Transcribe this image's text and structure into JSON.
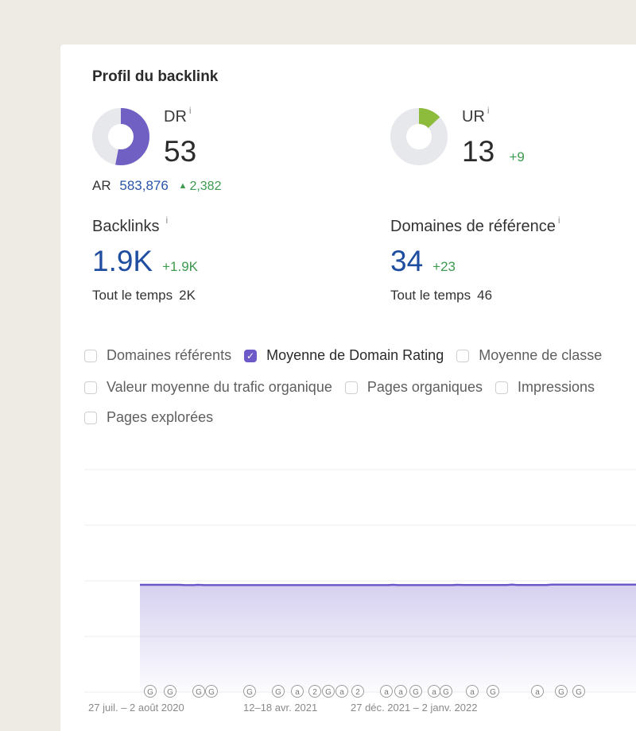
{
  "card": {
    "title": "Profil du backlink"
  },
  "dr": {
    "label": "DR",
    "info": "i",
    "value": "53",
    "fraction": 0.53,
    "color": "#7160c4"
  },
  "ur": {
    "label": "UR",
    "info": "i",
    "value": "13",
    "delta": "+9",
    "fraction": 0.13,
    "color": "#8dbb3c"
  },
  "ar": {
    "label": "AR",
    "value": "583,876",
    "delta_arrow": "▲",
    "delta": "2,382"
  },
  "backlinks": {
    "label": "Backlinks",
    "info": "i",
    "value": "1.9K",
    "delta": "+1.9K",
    "alltime_label": "Tout le temps",
    "alltime_value": "2K"
  },
  "refdomains": {
    "label": "Domaines de référence",
    "info": "i",
    "value": "34",
    "delta": "+23",
    "alltime_label": "Tout le temps",
    "alltime_value": "46"
  },
  "checkboxes": [
    {
      "label": "Domaines référents",
      "checked": false
    },
    {
      "label": "Moyenne de Domain Rating",
      "checked": true
    },
    {
      "label": "Moyenne de classe",
      "checked": false
    },
    {
      "label": "Valeur moyenne du trafic organique",
      "checked": false
    },
    {
      "label": "Pages organiques",
      "checked": false
    },
    {
      "label": "Impressions",
      "checked": false
    },
    {
      "label": "Pages explorées",
      "checked": false
    }
  ],
  "chart_data": {
    "type": "area",
    "series": [
      {
        "color": "#6e59c9",
        "points": [
          [
            0,
            0.5
          ],
          [
            0.08,
            0.5
          ],
          [
            0.09,
            0.48
          ],
          [
            0.11,
            0.48
          ],
          [
            0.115,
            0.5
          ],
          [
            0.13,
            0.48
          ],
          [
            0.5,
            0.48
          ],
          [
            0.51,
            0.5
          ],
          [
            0.52,
            0.48
          ],
          [
            0.63,
            0.48
          ],
          [
            0.64,
            0.5
          ],
          [
            0.65,
            0.49
          ],
          [
            0.74,
            0.49
          ],
          [
            0.75,
            0.51
          ],
          [
            0.76,
            0.49
          ],
          [
            0.82,
            0.49
          ],
          [
            0.83,
            0.51
          ],
          [
            1,
            0.51
          ]
        ]
      }
    ],
    "x_ticks": [
      "27 juil. – 2 août 2020",
      "12–18 avr. 2021",
      "27 déc. 2021 – 2 janv. 2022"
    ],
    "annotations": [
      "G",
      "G",
      "G",
      "G",
      "G",
      "G",
      "a",
      "(((2",
      "((G",
      "a",
      "((2",
      "a",
      "a",
      "G",
      "a",
      "G",
      "a",
      "G",
      "a",
      "G",
      "G"
    ]
  }
}
